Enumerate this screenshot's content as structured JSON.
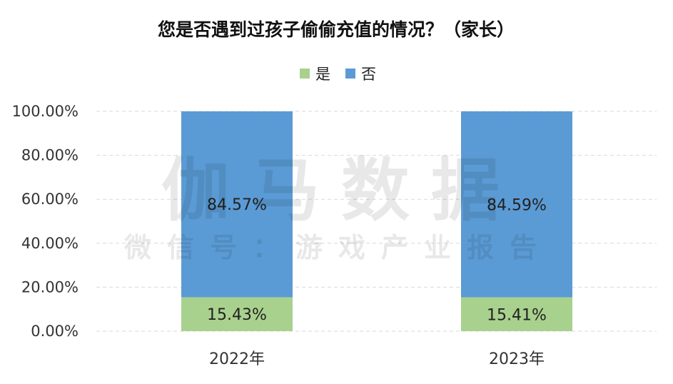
{
  "chart_data": {
    "type": "bar",
    "stacked": true,
    "title": "您是否遇到过孩子偷偷充值的情况？（家长）",
    "categories": [
      "2022年",
      "2023年"
    ],
    "series": [
      {
        "name": "是",
        "values": [
          15.43,
          15.41
        ],
        "labels": [
          "15.43%",
          "15.41%"
        ],
        "color": "#a9d18e"
      },
      {
        "name": "否",
        "values": [
          84.57,
          84.59
        ],
        "labels": [
          "84.57%",
          "84.59%"
        ],
        "color": "#5b9bd5"
      }
    ],
    "ylim": [
      0,
      100
    ],
    "yticks": [
      "0.00%",
      "20.00%",
      "40.00%",
      "60.00%",
      "80.00%",
      "100.00%"
    ],
    "ytick_values": [
      0,
      20,
      40,
      60,
      80,
      100
    ],
    "grid": true,
    "legend": "top"
  },
  "watermark": {
    "main": "伽马数据",
    "sub": "微信号：游戏产业报告"
  }
}
